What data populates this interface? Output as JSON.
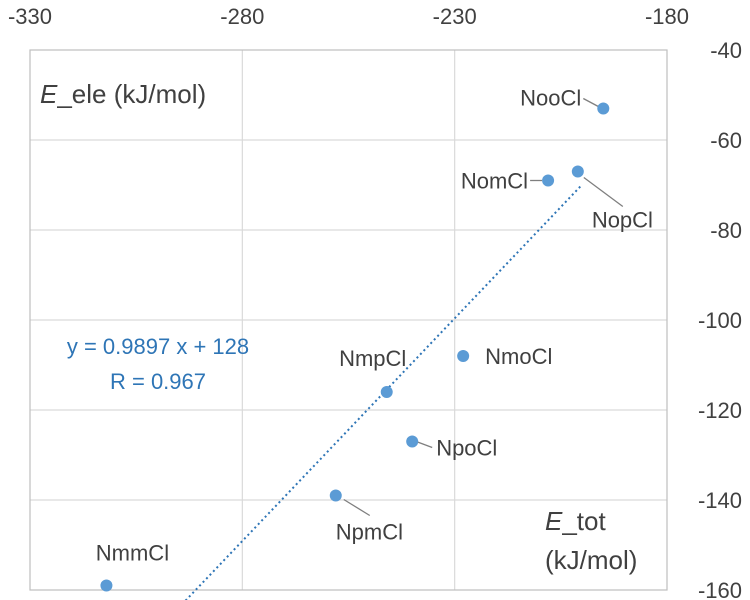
{
  "chart_data": {
    "type": "scatter",
    "title": "",
    "xlim": [
      -330,
      -180
    ],
    "ylim": [
      -160,
      -40
    ],
    "x_ticks": [
      -330,
      -280,
      -230,
      -180
    ],
    "y_ticks": [
      -40,
      -60,
      -80,
      -100,
      -120,
      -140,
      -160
    ],
    "x_tick_labels": [
      "-330",
      "-280",
      "-230",
      "-180"
    ],
    "y_tick_labels": [
      "-40",
      "-60",
      "-80",
      "-100",
      "-120",
      "-140",
      "-160"
    ],
    "xlabel_var": "E",
    "xlabel_sub": "_tot",
    "xlabel_unit": "(kJ/mol)",
    "ylabel_var": "E",
    "ylabel_sub": "_ele  (kJ/mol)",
    "grid": true,
    "marker_color": "#5b9bd5",
    "trend_color": "#2e75b6",
    "points": [
      {
        "name": "NooCl",
        "x": -195,
        "y": -53
      },
      {
        "name": "NopCl",
        "x": -201,
        "y": -67
      },
      {
        "name": "NomCl",
        "x": -208,
        "y": -69
      },
      {
        "name": "NmoCl",
        "x": -228,
        "y": -108
      },
      {
        "name": "NmpCl",
        "x": -246,
        "y": -116
      },
      {
        "name": "NpoCl",
        "x": -240,
        "y": -127
      },
      {
        "name": "NpmCl",
        "x": -258,
        "y": -139
      },
      {
        "name": "NmmCl",
        "x": -312,
        "y": -159
      }
    ],
    "trendline": {
      "equation": "y = 0.9897 x + 128",
      "r": "R = 0.967",
      "slope": 0.9897,
      "intercept": 128,
      "x_range": [
        -295,
        -200
      ]
    }
  }
}
